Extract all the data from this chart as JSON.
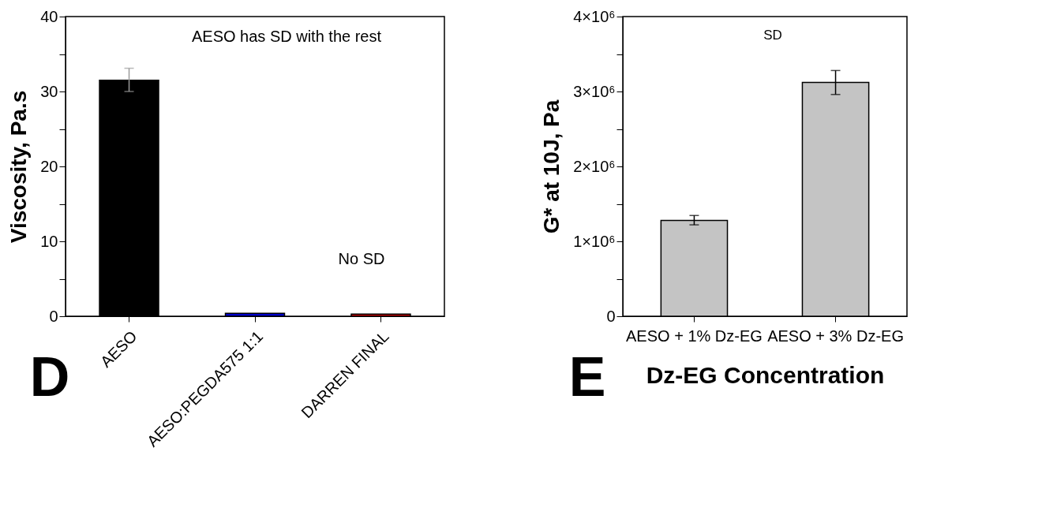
{
  "chart_data": [
    {
      "type": "bar",
      "ylabel": "Viscosity, Pa.s",
      "categories": [
        "AESO",
        "AESO:PEGDA575 1:1",
        "DARREN FINAL"
      ],
      "values": [
        31.5,
        0.4,
        0.3
      ],
      "colors": [
        "#000000",
        "#0000cc",
        "#cc0000"
      ],
      "errors": [
        [
          30.0,
          33.1
        ],
        null,
        null
      ],
      "ylim": [
        0,
        40
      ],
      "yticks": [
        0,
        {
          "value": 5,
          "label": null
        },
        10,
        {
          "value": 15,
          "label": null
        },
        20,
        {
          "value": 25,
          "label": null
        },
        30,
        {
          "value": 35,
          "label": null
        },
        40
      ],
      "grid": false,
      "legend": false,
      "annotations": [
        "AESO has SD with the rest",
        "No SD",
        "D"
      ]
    },
    {
      "type": "bar",
      "ylabel": "G* at 10J, Pa",
      "xlabel": "Dz-EG Concentration",
      "categories": [
        "AESO + 1% Dz-EG",
        "AESO + 3% Dz-EG"
      ],
      "values": [
        1280000,
        3120000
      ],
      "colors": [
        "#c4c4c4",
        "#c4c4c4"
      ],
      "errors": [
        [
          1220000,
          1345000
        ],
        [
          2960000,
          3280000
        ]
      ],
      "ylim": [
        0,
        4000000
      ],
      "yticks": [
        0,
        {
          "value": 500000,
          "label": null
        },
        {
          "value": 1000000,
          "label": "1×10⁶"
        },
        {
          "value": 1500000,
          "label": null
        },
        {
          "value": 2000000,
          "label": "2×10⁶"
        },
        {
          "value": 2500000,
          "label": null
        },
        {
          "value": 3000000,
          "label": "3×10⁶"
        },
        {
          "value": 3500000,
          "label": null
        },
        {
          "value": 4000000,
          "label": "4×10⁶"
        }
      ],
      "grid": false,
      "legend": false,
      "annotations": [
        "SD",
        "E"
      ]
    }
  ]
}
